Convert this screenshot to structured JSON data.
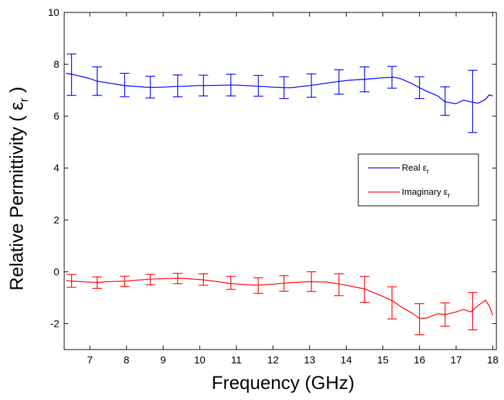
{
  "chart_data": {
    "type": "line",
    "title": "",
    "xlabel": "Frequency (GHz)",
    "ylabel": {
      "text": "Relative Permittivity ( ε",
      "sub": "r",
      "close": " )"
    },
    "xlim": [
      6.3,
      18.1
    ],
    "ylim": [
      -3,
      10
    ],
    "xticks": [
      7,
      8,
      9,
      10,
      11,
      12,
      13,
      14,
      15,
      16,
      17,
      18
    ],
    "yticks": [
      -2,
      0,
      2,
      4,
      6,
      8,
      10
    ],
    "ytick_labels": [
      "-2",
      "0",
      "2",
      "4",
      "6",
      "8",
      "10"
    ],
    "grid": false,
    "legend_position": "center-right",
    "series": [
      {
        "name": "Real ε",
        "name_sub": "r",
        "color": "#0000ff",
        "x": [
          6.35,
          6.5,
          7.0,
          7.2,
          7.5,
          8.0,
          8.5,
          8.7,
          9.0,
          9.4,
          9.5,
          10.0,
          10.5,
          10.8,
          11.0,
          11.5,
          12.0,
          12.3,
          12.5,
          13.0,
          13.5,
          13.8,
          14.0,
          14.5,
          15.0,
          15.3,
          15.5,
          15.8,
          16.0,
          16.2,
          16.5,
          16.7,
          17.0,
          17.2,
          17.4,
          17.6,
          17.8,
          17.9,
          18.0
        ],
        "y": [
          7.65,
          7.62,
          7.45,
          7.35,
          7.28,
          7.17,
          7.12,
          7.11,
          7.12,
          7.15,
          7.15,
          7.18,
          7.19,
          7.2,
          7.2,
          7.16,
          7.12,
          7.1,
          7.1,
          7.18,
          7.28,
          7.34,
          7.38,
          7.42,
          7.48,
          7.5,
          7.44,
          7.25,
          7.1,
          6.96,
          6.78,
          6.55,
          6.48,
          6.62,
          6.55,
          6.5,
          6.65,
          6.82,
          6.78
        ],
        "error_bars": {
          "x": [
            6.5,
            7.2,
            7.95,
            8.65,
            9.4,
            10.1,
            10.85,
            11.6,
            12.3,
            13.05,
            13.8,
            14.5,
            15.25,
            16.0,
            16.7,
            17.45
          ],
          "center": [
            7.6,
            7.35,
            7.2,
            7.12,
            7.17,
            7.18,
            7.2,
            7.17,
            7.1,
            7.18,
            7.32,
            7.42,
            7.5,
            7.1,
            6.58,
            6.57
          ],
          "err": [
            0.8,
            0.55,
            0.45,
            0.42,
            0.42,
            0.4,
            0.42,
            0.4,
            0.42,
            0.45,
            0.47,
            0.48,
            0.42,
            0.42,
            0.55,
            1.2
          ]
        }
      },
      {
        "name": "Imaginary ε",
        "name_sub": "r",
        "color": "#ff0000",
        "x": [
          6.35,
          6.5,
          7.0,
          7.2,
          7.5,
          8.0,
          8.5,
          8.7,
          9.0,
          9.4,
          9.5,
          10.0,
          10.5,
          10.8,
          11.0,
          11.5,
          12.0,
          12.3,
          12.5,
          13.0,
          13.5,
          13.8,
          14.0,
          14.5,
          15.0,
          15.3,
          15.5,
          15.8,
          16.0,
          16.2,
          16.5,
          16.7,
          17.0,
          17.2,
          17.4,
          17.6,
          17.8,
          17.9,
          18.0
        ],
        "y": [
          -0.35,
          -0.36,
          -0.4,
          -0.41,
          -0.38,
          -0.36,
          -0.3,
          -0.28,
          -0.27,
          -0.25,
          -0.25,
          -0.3,
          -0.38,
          -0.45,
          -0.47,
          -0.52,
          -0.48,
          -0.44,
          -0.42,
          -0.38,
          -0.4,
          -0.47,
          -0.52,
          -0.66,
          -0.95,
          -1.15,
          -1.35,
          -1.6,
          -1.8,
          -1.78,
          -1.62,
          -1.65,
          -1.55,
          -1.45,
          -1.55,
          -1.3,
          -1.1,
          -1.3,
          -1.68
        ],
        "error_bars": {
          "x": [
            6.5,
            7.2,
            7.95,
            8.65,
            9.4,
            10.1,
            10.85,
            11.6,
            12.3,
            13.05,
            13.8,
            14.5,
            15.25,
            16.0,
            16.7,
            17.45
          ],
          "center": [
            -0.35,
            -0.42,
            -0.37,
            -0.3,
            -0.26,
            -0.3,
            -0.43,
            -0.53,
            -0.45,
            -0.38,
            -0.5,
            -0.68,
            -1.2,
            -1.83,
            -1.65,
            -1.52
          ],
          "err": [
            0.25,
            0.22,
            0.2,
            0.2,
            0.2,
            0.22,
            0.25,
            0.3,
            0.3,
            0.38,
            0.42,
            0.5,
            0.62,
            0.6,
            0.45,
            0.72
          ]
        }
      }
    ]
  }
}
